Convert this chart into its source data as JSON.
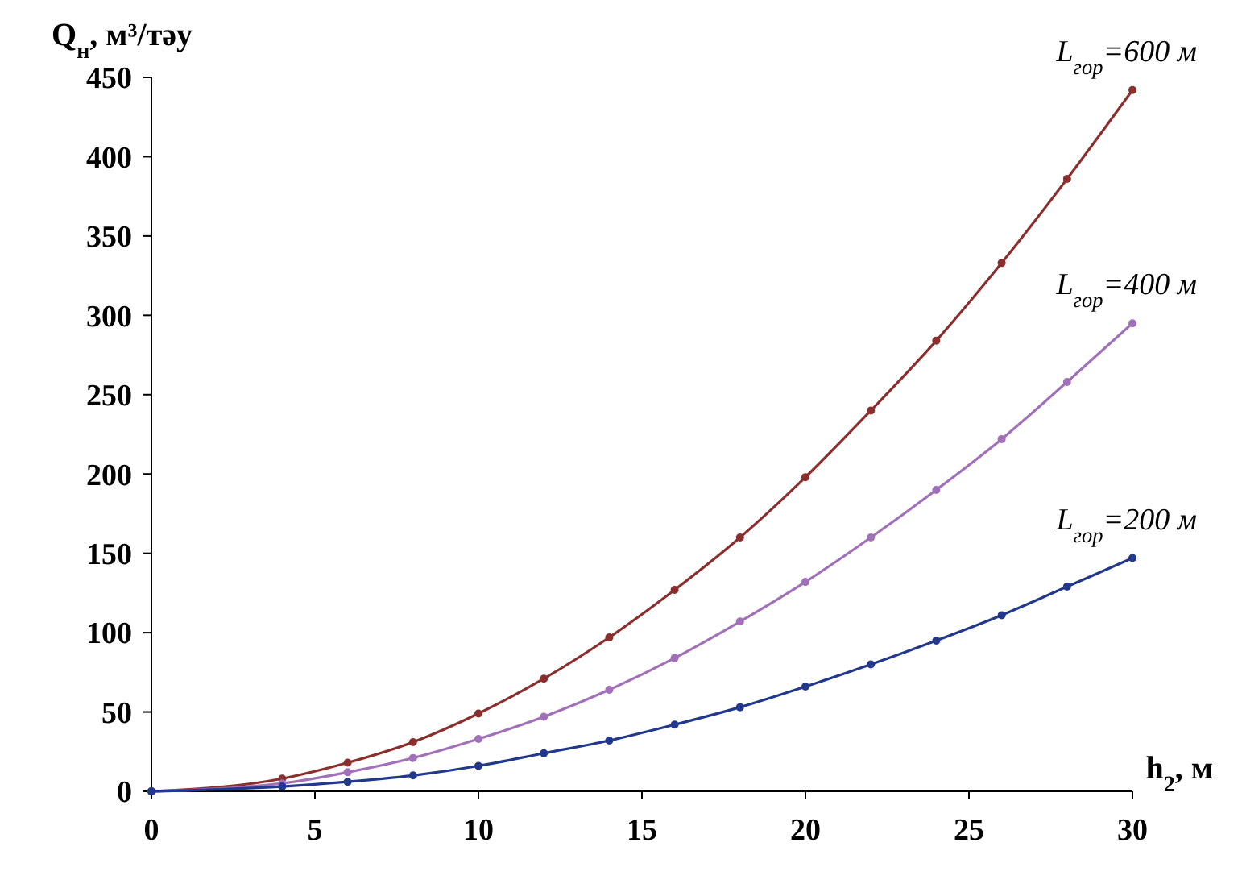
{
  "chart_data": {
    "type": "line",
    "xlabel": "h$_{2}$, м",
    "ylabel": "Q$_{н}$, м³/тәу",
    "x": [
      0,
      4,
      6,
      8,
      10,
      12,
      14,
      16,
      18,
      20,
      22,
      24,
      26,
      28,
      30
    ],
    "xlim": [
      0,
      30
    ],
    "xticks": [
      0,
      5,
      10,
      15,
      20,
      25,
      30
    ],
    "ylim": [
      0,
      450
    ],
    "yticks": [
      0,
      50,
      100,
      150,
      200,
      250,
      300,
      350,
      400,
      450
    ],
    "grid": false,
    "marker": "circle",
    "line_style": "solid",
    "series": [
      {
        "name": "L$_{гор}$=600 м",
        "color": "#8b2e2e",
        "values": [
          0,
          8,
          18,
          31,
          49,
          71,
          97,
          127,
          160,
          198,
          240,
          284,
          333,
          386,
          442
        ]
      },
      {
        "name": "L$_{гор}$=400 м",
        "color": "#a070b8",
        "values": [
          0,
          5,
          12,
          21,
          33,
          47,
          64,
          84,
          107,
          132,
          160,
          190,
          222,
          258,
          295
        ]
      },
      {
        "name": "L$_{гор}$=200 м",
        "color": "#22388c",
        "values": [
          0,
          3,
          6,
          10,
          16,
          24,
          32,
          42,
          53,
          66,
          80,
          95,
          111,
          129,
          147
        ]
      }
    ]
  }
}
